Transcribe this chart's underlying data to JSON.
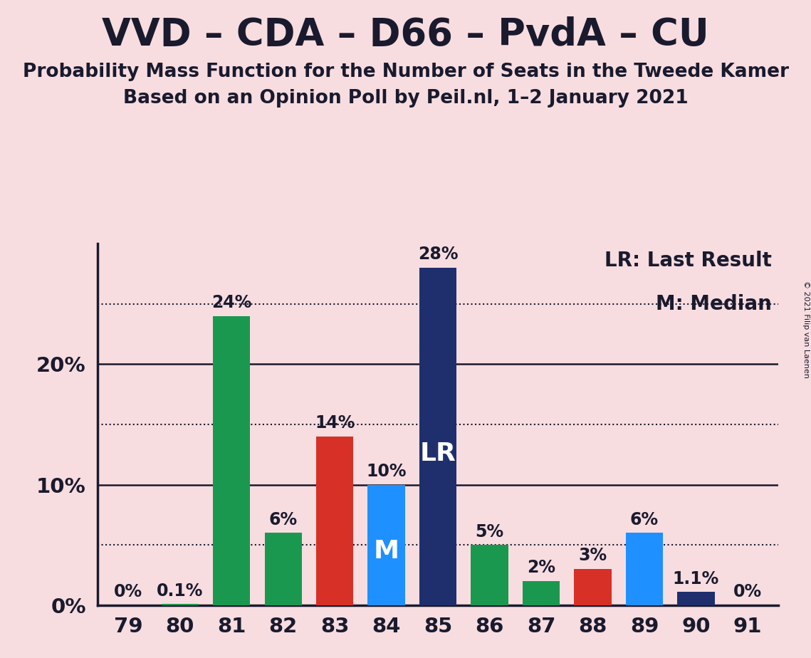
{
  "title": "VVD – CDA – D66 – PvdA – CU",
  "subtitle1": "Probability Mass Function for the Number of Seats in the Tweede Kamer",
  "subtitle2": "Based on an Opinion Poll by Peil.nl, 1–2 January 2021",
  "copyright": "© 2021 Filip van Laenen",
  "categories": [
    79,
    80,
    81,
    82,
    83,
    84,
    85,
    86,
    87,
    88,
    89,
    90,
    91
  ],
  "values": [
    0.0,
    0.1,
    24.0,
    6.0,
    14.0,
    10.0,
    28.0,
    5.0,
    2.0,
    3.0,
    6.0,
    1.1,
    0.0
  ],
  "labels": [
    "0%",
    "0.1%",
    "24%",
    "6%",
    "14%",
    "10%",
    "28%",
    "5%",
    "2%",
    "3%",
    "6%",
    "1.1%",
    "0%"
  ],
  "bar_colors": [
    "#1a9850",
    "#1a9850",
    "#1a9850",
    "#1a9850",
    "#d73027",
    "#1e90ff",
    "#1f2f6e",
    "#1a9850",
    "#1a9850",
    "#d73027",
    "#1e90ff",
    "#1f2f6e",
    "#1a9850"
  ],
  "LR_index": 6,
  "M_index": 5,
  "LR_label": "LR",
  "M_label": "M",
  "legend_LR": "LR: Last Result",
  "legend_M": "M: Median",
  "background_color": "#f7dde0",
  "ylim": [
    0,
    30
  ],
  "solid_yticks": [
    0,
    10,
    20
  ],
  "dotted_yticks": [
    5,
    15,
    25
  ],
  "title_fontsize": 38,
  "subtitle_fontsize": 19,
  "tick_fontsize": 21,
  "bar_label_fontsize": 17,
  "inbar_label_fontsize": 26,
  "legend_fontsize": 20,
  "spine_color": "#1a1a2e",
  "text_color": "#1a1a2e"
}
